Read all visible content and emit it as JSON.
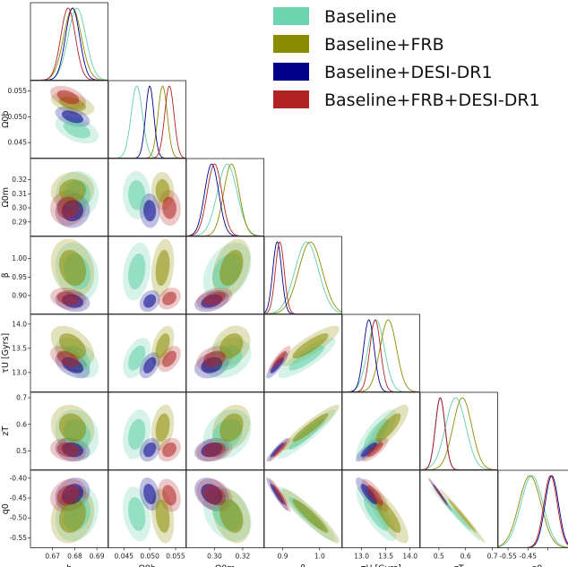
{
  "chart_data": {
    "type": "corner",
    "parameters": [
      {
        "key": "h",
        "label": "h",
        "ticks": [
          0.67,
          0.68,
          0.69
        ],
        "range": [
          0.66,
          0.695
        ]
      },
      {
        "key": "ob",
        "label": "Ω0b",
        "ticks": [
          0.045,
          0.05,
          0.055
        ],
        "range": [
          0.042,
          0.057
        ]
      },
      {
        "key": "om",
        "label": "Ω0m",
        "ticks": [
          0.3,
          0.32
        ],
        "range": [
          0.28,
          0.335
        ]
      },
      {
        "key": "beta",
        "label": "β",
        "ticks": [
          0.9,
          1.0
        ],
        "range": [
          0.85,
          1.06
        ]
      },
      {
        "key": "tau",
        "label": "τU [Gyrs]",
        "ticks": [
          13.0,
          13.5,
          14.0
        ],
        "range": [
          12.6,
          14.2
        ]
      },
      {
        "key": "zt",
        "label": "zT",
        "ticks": [
          0.5,
          0.6,
          0.7
        ],
        "range": [
          0.43,
          0.72
        ]
      },
      {
        "key": "q0",
        "label": "q0",
        "ticks": [
          -0.55,
          -0.5,
          -0.45
        ],
        "range": [
          -0.575,
          -0.38
        ]
      }
    ],
    "row_tick_labels": {
      "ob": [
        "0.045",
        "0.050",
        "0.055"
      ],
      "om": [
        "0.29",
        "0.30",
        "0.31",
        "0.32"
      ],
      "beta": [
        "0.90",
        "0.95",
        "1.00"
      ],
      "tau": [
        "13.0",
        "13.5",
        "14.0"
      ],
      "zt": [
        "0.5",
        "0.6",
        "0.7"
      ],
      "q0": [
        "-0.55",
        "-0.50",
        "-0.45",
        "-0.40"
      ]
    },
    "col_tick_labels": {
      "h": [
        "0.67",
        "0.68",
        "0.69"
      ],
      "ob": [
        "0.045",
        "0.050",
        "0.055"
      ],
      "om": [
        "0.30",
        "0.32"
      ],
      "beta": [
        "0.9",
        "1.0"
      ],
      "tau": [
        "13.0",
        "13.5",
        "14.0"
      ],
      "zt": [
        "0.5",
        "0.6",
        "0.7"
      ],
      "q0": [
        "-0.55",
        "-0.45"
      ]
    },
    "row_axis_labels": {
      "ob": "Ω0b",
      "om": "Ω0m",
      "beta": "β",
      "tau": "τU [Gyrs]",
      "zt": "zT",
      "q0": "q0"
    },
    "series": [
      {
        "name": "Baseline",
        "color": "#5ecfa6",
        "mean": {
          "h": 0.681,
          "ob": 0.0475,
          "om": 0.309,
          "beta": 0.965,
          "tau": 13.3,
          "zt": 0.563,
          "q0": -0.49
        },
        "sd": {
          "h": 0.004,
          "ob": 0.0011,
          "om": 0.007,
          "beta": 0.032,
          "tau": 0.17,
          "zt": 0.038,
          "q0": 0.028
        }
      },
      {
        "name": "Baseline+FRB",
        "color": "#8b8b00",
        "mean": {
          "h": 0.679,
          "ob": 0.0525,
          "om": 0.312,
          "beta": 0.975,
          "tau": 13.55,
          "zt": 0.588,
          "q0": -0.495
        },
        "sd": {
          "h": 0.004,
          "ob": 0.0009,
          "om": 0.0055,
          "beta": 0.032,
          "tau": 0.17,
          "zt": 0.035,
          "q0": 0.028
        }
      },
      {
        "name": "Baseline+DESI-DR1",
        "color": "#00008b",
        "mean": {
          "h": 0.679,
          "ob": 0.05,
          "om": 0.298,
          "beta": 0.885,
          "tau": 13.15,
          "zt": 0.505,
          "q0": -0.44
        },
        "sd": {
          "h": 0.0032,
          "ob": 0.0008,
          "om": 0.005,
          "beta": 0.012,
          "tau": 0.11,
          "zt": 0.018,
          "q0": 0.017
        }
      },
      {
        "name": "Baseline+FRB+DESI-DR1",
        "color": "#b22222",
        "mean": {
          "h": 0.677,
          "ob": 0.0538,
          "om": 0.3,
          "beta": 0.892,
          "tau": 13.28,
          "zt": 0.505,
          "q0": -0.443
        },
        "sd": {
          "h": 0.0033,
          "ob": 0.0009,
          "om": 0.0052,
          "beta": 0.012,
          "tau": 0.11,
          "zt": 0.018,
          "q0": 0.017
        }
      }
    ],
    "correlations": {
      "h|ob": -0.45,
      "h|om": 0.05,
      "ob|om": -0.05,
      "h|beta": -0.2,
      "ob|beta": 0.25,
      "om|beta": 0.35,
      "h|tau": -0.45,
      "ob|tau": 0.45,
      "om|tau": 0.25,
      "beta|tau": 0.85,
      "h|zt": -0.15,
      "ob|zt": 0.25,
      "om|zt": 0.25,
      "beta|zt": 0.93,
      "tau|zt": 0.8,
      "h|q0": 0.2,
      "ob|q0": -0.25,
      "om|q0": -0.3,
      "beta|q0": -0.93,
      "tau|q0": -0.8,
      "zt|q0": -0.99
    }
  }
}
